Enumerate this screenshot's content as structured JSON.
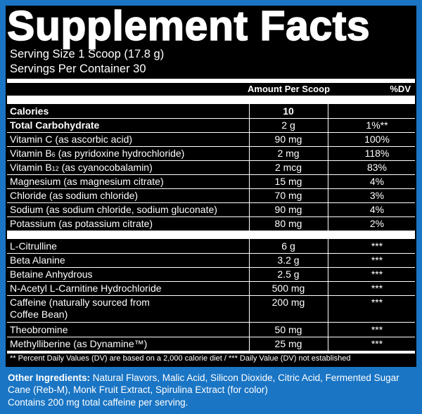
{
  "label": {
    "title": "Supplement Facts",
    "serving_size": "Serving Size 1 Scoop (17.8 g)",
    "servings_per_container": "Servings Per Container 30",
    "header_amount": "Amount Per Scoop",
    "header_dv": "%DV"
  },
  "nutrients": [
    {
      "name": "Calories",
      "amount": "10",
      "dv": ""
    },
    {
      "name": "Total Carbohydrate",
      "amount": "2 g",
      "dv": "1%**"
    },
    {
      "name": "Vitamin C (as ascorbic acid)",
      "amount": "90 mg",
      "dv": "100%"
    },
    {
      "name_pre": "Vitamin B",
      "name_sub": "6",
      "name_post": " (as pyridoxine hydrochloride)",
      "amount": "2 mg",
      "dv": "118%"
    },
    {
      "name_pre": "Vitamin B",
      "name_sub": "12",
      "name_post": " (as cyanocobalamin)",
      "amount": "2 mcg",
      "dv": "83%"
    },
    {
      "name": "Magnesium (as magnesium citrate)",
      "amount": "15 mg",
      "dv": "4%"
    },
    {
      "name": "Chloride (as sodium chloride)",
      "amount": "70 mg",
      "dv": "3%"
    },
    {
      "name": "Sodium (as sodium chloride, sodium gluconate)",
      "amount": "90 mg",
      "dv": "4%"
    },
    {
      "name": "Potassium (as potassium citrate)",
      "amount": "80 mg",
      "dv": "2%"
    }
  ],
  "ingredients": [
    {
      "name": "L-Citrulline",
      "amount": "6 g",
      "dv": "***"
    },
    {
      "name": "Beta Alanine",
      "amount": "3.2 g",
      "dv": "***"
    },
    {
      "name": "Betaine Anhydrous",
      "amount": "2.5 g",
      "dv": "***"
    },
    {
      "name": "N-Acetyl L-Carnitine Hydrochloride",
      "amount": "500 mg",
      "dv": "***"
    },
    {
      "name_line1": "Caffeine (naturally sourced from",
      "name_line2": "Coffee Bean)",
      "amount": "200 mg",
      "dv": "***"
    },
    {
      "name": "Theobromine",
      "amount": "50 mg",
      "dv": "***"
    },
    {
      "name": "Methylliberine (as Dynamine™)",
      "amount": "25 mg",
      "dv": "***"
    }
  ],
  "footnote": "** Percent Daily Values (DV) are based on a 2,000 calorie diet / *** Daily Value (DV) not established",
  "other": {
    "label": "Other Ingredients:",
    "text": " Natural Flavors, Malic Acid, Silicon Dioxide, Citric Acid, Fermented Sugar Cane (Reb-M), Monk Fruit Extract, Spirulina Extract (for color)",
    "caffeine_note": "Contains 200 mg total caffeine per serving."
  },
  "colors": {
    "background": "#1a75c4",
    "panel": "#000000",
    "text": "#ffffff"
  }
}
